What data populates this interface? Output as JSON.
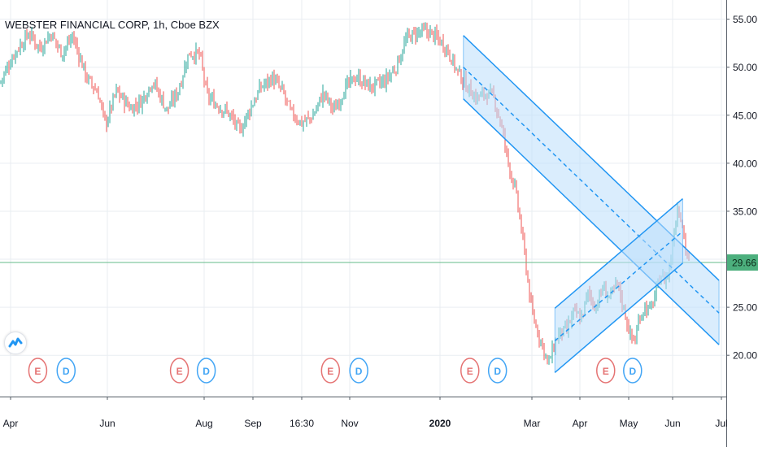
{
  "header": {
    "title": "WEBSTER FINANCIAL CORP, 1h, Cboe BZX"
  },
  "colors": {
    "up": "#26a69a",
    "down": "#ef5350",
    "channel": "#2196f3",
    "channel_fill": "#bbdefb",
    "last_price_line": "#66bb8a",
    "last_price_badge": "#4caf7d",
    "earnings": "#e57373",
    "dividend": "#42a5f5",
    "grid": "#e9edf2",
    "axis_text": "#131722"
  },
  "chart_data": {
    "type": "candlestick",
    "symbol": "WEBSTER FINANCIAL CORP",
    "interval": "1h",
    "exchange": "Cboe BZX",
    "price_axis": {
      "ticks": [
        20,
        25,
        30,
        35,
        40,
        45,
        50,
        55
      ],
      "tick_labels": [
        "20.00",
        "25.00",
        "30.00",
        "35.00",
        "40.00",
        "45.00",
        "50.00",
        "55.00"
      ],
      "range": [
        15.7,
        57.0
      ],
      "position": "right"
    },
    "time_axis": {
      "labels": [
        "Apr",
        "Jun",
        "Aug",
        "Sep",
        "16:30",
        "Nov",
        "2020",
        "Mar",
        "Apr",
        "May",
        "Jun",
        "Jul"
      ],
      "bold_labels": [
        "2020"
      ],
      "range": [
        0,
        100
      ]
    },
    "last_price": {
      "value": 29.66,
      "label": "29.66"
    },
    "price_path": [
      [
        0.0,
        48.4
      ],
      [
        2.0,
        51.5
      ],
      [
        4.0,
        53.5
      ],
      [
        5.5,
        52.0
      ],
      [
        7.0,
        53.5
      ],
      [
        8.5,
        51.5
      ],
      [
        10.0,
        53.2
      ],
      [
        12.0,
        48.8
      ],
      [
        13.5,
        47.3
      ],
      [
        14.5,
        44.0
      ],
      [
        16.0,
        47.5
      ],
      [
        18.0,
        45.7
      ],
      [
        19.5,
        46.5
      ],
      [
        21.0,
        48.6
      ],
      [
        23.0,
        45.5
      ],
      [
        24.5,
        47.5
      ],
      [
        26.0,
        51.5
      ],
      [
        27.5,
        51.3
      ],
      [
        28.5,
        47.0
      ],
      [
        30.0,
        46.0
      ],
      [
        31.5,
        45.2
      ],
      [
        33.0,
        43.3
      ],
      [
        34.5,
        45.8
      ],
      [
        36.0,
        48.0
      ],
      [
        37.5,
        48.9
      ],
      [
        39.0,
        47.3
      ],
      [
        40.0,
        45.3
      ],
      [
        41.5,
        44.2
      ],
      [
        43.0,
        44.8
      ],
      [
        44.5,
        47.3
      ],
      [
        46.0,
        45.5
      ],
      [
        47.5,
        47.8
      ],
      [
        49.0,
        49.0
      ],
      [
        51.0,
        47.9
      ],
      [
        53.0,
        48.5
      ],
      [
        54.5,
        50.0
      ],
      [
        56.0,
        53.0
      ],
      [
        57.5,
        53.6
      ],
      [
        59.0,
        53.7
      ],
      [
        60.5,
        52.8
      ],
      [
        61.5,
        52.0
      ],
      [
        63.0,
        49.5
      ],
      [
        64.5,
        47.8
      ],
      [
        65.5,
        46.8
      ],
      [
        67.0,
        47.3
      ],
      [
        68.0,
        46.8
      ],
      [
        69.0,
        44.0
      ],
      [
        70.0,
        40.0
      ],
      [
        71.0,
        37.0
      ],
      [
        71.8,
        33.0
      ],
      [
        72.5,
        28.8
      ],
      [
        73.2,
        24.5
      ],
      [
        74.0,
        22.5
      ],
      [
        74.8,
        20.8
      ],
      [
        75.5,
        19.0
      ],
      [
        76.3,
        21.0
      ],
      [
        77.0,
        22.3
      ],
      [
        78.0,
        22.5
      ],
      [
        79.0,
        24.5
      ],
      [
        80.0,
        23.8
      ],
      [
        81.0,
        26.5
      ],
      [
        82.0,
        25.0
      ],
      [
        83.0,
        27.0
      ],
      [
        84.0,
        26.0
      ],
      [
        85.0,
        27.5
      ],
      [
        86.0,
        24.5
      ],
      [
        86.8,
        22.0
      ],
      [
        87.5,
        21.5
      ],
      [
        88.0,
        24.0
      ],
      [
        88.8,
        25.0
      ],
      [
        89.5,
        24.6
      ],
      [
        90.5,
        27.0
      ],
      [
        91.0,
        28.5
      ],
      [
        91.5,
        27.8
      ],
      [
        92.2,
        29.0
      ],
      [
        92.8,
        33.0
      ],
      [
        93.3,
        35.5
      ],
      [
        93.8,
        34.5
      ],
      [
        94.4,
        31.0
      ],
      [
        95.0,
        29.6
      ]
    ],
    "drawings": [
      {
        "type": "parallel_channel",
        "name": "descending-channel",
        "start": {
          "t": 63.8,
          "upper": 53.3,
          "middle": 50.0,
          "lower": 46.7
        },
        "end": {
          "t": 99.0,
          "upper": 27.8,
          "middle": 24.4,
          "lower": 21.1
        }
      },
      {
        "type": "parallel_channel",
        "name": "ascending-channel",
        "start": {
          "t": 76.4,
          "upper": 24.9,
          "middle": 21.5,
          "lower": 18.2
        },
        "end": {
          "t": 94.0,
          "upper": 36.3,
          "middle": 32.9,
          "lower": 29.6
        }
      }
    ],
    "events": [
      {
        "type": "E",
        "t": 5.2
      },
      {
        "type": "D",
        "t": 9.1
      },
      {
        "type": "E",
        "t": 24.7
      },
      {
        "type": "D",
        "t": 28.4
      },
      {
        "type": "E",
        "t": 45.5
      },
      {
        "type": "D",
        "t": 49.4
      },
      {
        "type": "E",
        "t": 64.7
      },
      {
        "type": "D",
        "t": 68.5
      },
      {
        "type": "E",
        "t": 83.4
      },
      {
        "type": "D",
        "t": 87.1
      }
    ],
    "grid": true,
    "legend": "none"
  }
}
